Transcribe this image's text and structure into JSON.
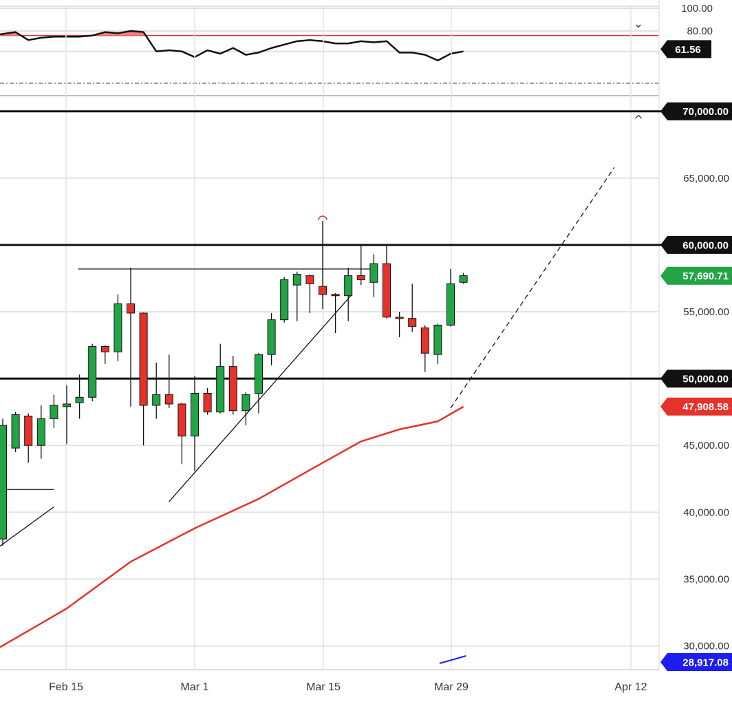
{
  "chart_data": {
    "type": "candlestick",
    "x_ticks": [
      "Feb 15",
      "Mar 1",
      "Mar 15",
      "Mar 29",
      "Apr 12"
    ],
    "price_axis": {
      "ylim": [
        28600,
        73500
      ],
      "ticks": [
        {
          "value": 30000,
          "label": "30,000.00"
        },
        {
          "value": 35000,
          "label": "35,000.00"
        },
        {
          "value": 40000,
          "label": "40,000.00"
        },
        {
          "value": 45000,
          "label": "45,000.00"
        },
        {
          "value": 50000,
          "label": "50,000.00"
        },
        {
          "value": 55000,
          "label": "55,000.00"
        },
        {
          "value": 60000,
          "label": "60,000.00"
        },
        {
          "value": 65000,
          "label": "65,000.00"
        },
        {
          "value": 70000,
          "label": "70,000.00"
        }
      ]
    },
    "rsi_panel": {
      "ylim": [
        20,
        100
      ],
      "ticks": [
        {
          "value": 100,
          "label": "100.00"
        },
        {
          "value": 80,
          "label": "80.00"
        }
      ],
      "overbought": 76,
      "lower_reference": 34,
      "current": {
        "value": 61.56,
        "label": "61.56"
      },
      "values": [
        77,
        79,
        72,
        74,
        75,
        75,
        75,
        76,
        79,
        78,
        80,
        79,
        62,
        63,
        62,
        57,
        63,
        60,
        65,
        59,
        61,
        65,
        68,
        71,
        72,
        71,
        69,
        69,
        71,
        70,
        71,
        61,
        61,
        59,
        54,
        60,
        62
      ]
    },
    "candles": [
      {
        "open": 38000,
        "high": 47000,
        "low": 37500,
        "close": 46500
      },
      {
        "open": 44800,
        "high": 47500,
        "low": 44500,
        "close": 47300
      },
      {
        "open": 47200,
        "high": 47400,
        "low": 43700,
        "close": 45000
      },
      {
        "open": 45000,
        "high": 48000,
        "low": 44000,
        "close": 47000
      },
      {
        "open": 47000,
        "high": 48800,
        "low": 46300,
        "close": 48000
      },
      {
        "open": 47900,
        "high": 49500,
        "low": 45100,
        "close": 48100
      },
      {
        "open": 48200,
        "high": 50300,
        "low": 47000,
        "close": 48600
      },
      {
        "open": 48600,
        "high": 52600,
        "low": 48300,
        "close": 52400
      },
      {
        "open": 52400,
        "high": 52500,
        "low": 51100,
        "close": 52000
      },
      {
        "open": 52000,
        "high": 56300,
        "low": 51300,
        "close": 55600
      },
      {
        "open": 55600,
        "high": 58300,
        "low": 47900,
        "close": 54900
      },
      {
        "open": 54900,
        "high": 54950,
        "low": 45000,
        "close": 48000
      },
      {
        "open": 48000,
        "high": 51200,
        "low": 47000,
        "close": 48800
      },
      {
        "open": 48800,
        "high": 51800,
        "low": 47800,
        "close": 48100
      },
      {
        "open": 48100,
        "high": 48200,
        "low": 43600,
        "close": 45700
      },
      {
        "open": 45700,
        "high": 50200,
        "low": 43100,
        "close": 48900
      },
      {
        "open": 48900,
        "high": 49300,
        "low": 47300,
        "close": 47500
      },
      {
        "open": 47500,
        "high": 52600,
        "low": 47400,
        "close": 50900
      },
      {
        "open": 50900,
        "high": 51700,
        "low": 47300,
        "close": 47600
      },
      {
        "open": 47600,
        "high": 49000,
        "low": 46500,
        "close": 48800
      },
      {
        "open": 48900,
        "high": 51900,
        "low": 47400,
        "close": 51800
      },
      {
        "open": 51800,
        "high": 54900,
        "low": 51000,
        "close": 54400
      },
      {
        "open": 54400,
        "high": 57600,
        "low": 54200,
        "close": 57400
      },
      {
        "open": 57000,
        "high": 58000,
        "low": 54300,
        "close": 57800
      },
      {
        "open": 57700,
        "high": 57800,
        "low": 54900,
        "close": 57100
      },
      {
        "open": 56900,
        "high": 61800,
        "low": 55200,
        "close": 56300
      },
      {
        "open": 56300,
        "high": 56400,
        "low": 53400,
        "close": 56200
      },
      {
        "open": 56200,
        "high": 58300,
        "low": 54300,
        "close": 57700
      },
      {
        "open": 57700,
        "high": 60000,
        "low": 57000,
        "close": 57400
      },
      {
        "open": 57200,
        "high": 59300,
        "low": 56100,
        "close": 58600
      },
      {
        "open": 58600,
        "high": 60000,
        "low": 54500,
        "close": 54600
      },
      {
        "open": 54600,
        "high": 55000,
        "low": 53100,
        "close": 54500
      },
      {
        "open": 54500,
        "high": 57100,
        "low": 53500,
        "close": 53900
      },
      {
        "open": 53800,
        "high": 54000,
        "low": 50500,
        "close": 51900
      },
      {
        "open": 51800,
        "high": 54100,
        "low": 51100,
        "close": 54000
      },
      {
        "open": 54000,
        "high": 58200,
        "low": 53900,
        "close": 57100
      },
      {
        "open": 57200,
        "high": 57900,
        "low": 57100,
        "close": 57700
      }
    ],
    "ma_line": {
      "x": [
        0,
        5,
        10,
        15,
        20,
        25,
        28,
        31,
        34,
        36
      ],
      "y": [
        29900,
        32800,
        36300,
        38800,
        41000,
        43700,
        45300,
        46200,
        46800,
        47900
      ]
    },
    "horizontal_levels": [
      {
        "value": 70000,
        "label": "70,000.00"
      },
      {
        "value": 60000,
        "label": "60,000.00"
      },
      {
        "value": 50000,
        "label": "50,000.00"
      }
    ],
    "thin_resistance": {
      "x": [
        6,
        29
      ],
      "value": 58200
    },
    "short_hline": {
      "x": [
        0,
        4
      ],
      "value": 41700
    },
    "trendlines": [
      {
        "x": [
          -0.6,
          4
        ],
        "y": [
          37200,
          40400
        ]
      },
      {
        "x": [
          13,
          27.2
        ],
        "y": [
          40800,
          56200
        ]
      }
    ],
    "projection": {
      "x": [
        35,
        47.8
      ],
      "y": [
        47800,
        65800
      ]
    },
    "bottom_line": {
      "x": [
        35,
        36.2
      ],
      "y": [
        28900,
        29150
      ]
    },
    "price_tags": [
      {
        "value": 57690.71,
        "label": "57,690.71",
        "color": "#22a447"
      },
      {
        "value": 47908.58,
        "label": "47,908.58",
        "color": "#e5322b"
      },
      {
        "value": 28917.08,
        "label": "28,917.08",
        "color": "#1d1df0"
      }
    ],
    "legend": "none"
  }
}
